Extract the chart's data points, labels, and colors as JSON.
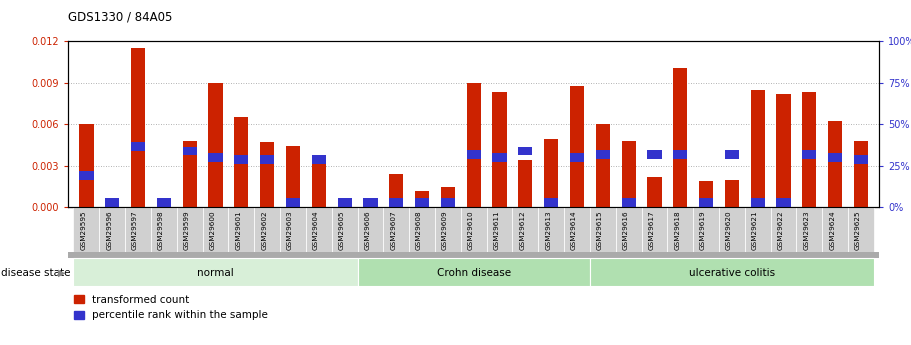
{
  "title": "GDS1330 / 84A05",
  "samples": [
    "GSM29595",
    "GSM29596",
    "GSM29597",
    "GSM29598",
    "GSM29599",
    "GSM29600",
    "GSM29601",
    "GSM29602",
    "GSM29603",
    "GSM29604",
    "GSM29605",
    "GSM29606",
    "GSM29607",
    "GSM29608",
    "GSM29609",
    "GSM29610",
    "GSM29611",
    "GSM29612",
    "GSM29613",
    "GSM29614",
    "GSM29615",
    "GSM29616",
    "GSM29617",
    "GSM29618",
    "GSM29619",
    "GSM29620",
    "GSM29621",
    "GSM29622",
    "GSM29623",
    "GSM29624",
    "GSM29625"
  ],
  "red_values": [
    0.006,
    0.0001,
    0.01155,
    0.0001,
    0.0048,
    0.009,
    0.0065,
    0.0047,
    0.0044,
    0.0035,
    0.0001,
    0.0001,
    0.0024,
    0.00115,
    0.00145,
    0.009,
    0.0083,
    0.0034,
    0.0049,
    0.0088,
    0.006,
    0.0048,
    0.0022,
    0.0101,
    0.0019,
    0.00195,
    0.0085,
    0.0082,
    0.0083,
    0.0062,
    0.0048
  ],
  "blue_percentile": [
    17,
    1,
    35,
    1,
    32,
    28,
    27,
    27,
    1,
    27,
    1,
    1,
    1,
    1,
    1,
    30,
    28,
    32,
    1,
    28,
    30,
    1,
    30,
    30,
    1,
    30,
    1,
    1,
    30,
    28,
    27
  ],
  "groups": [
    {
      "label": "normal",
      "start": 0,
      "end": 11
    },
    {
      "label": "Crohn disease",
      "start": 11,
      "end": 20
    },
    {
      "label": "ulcerative colitis",
      "start": 20,
      "end": 31
    }
  ],
  "group_colors": [
    "#d8efd8",
    "#b0e0b0",
    "#b0e0b0"
  ],
  "group_header_color": "#888888",
  "bar_color_red": "#cc2200",
  "bar_color_blue": "#3333cc",
  "bar_width": 0.55,
  "ylim_left": [
    0,
    0.012
  ],
  "ylim_right": [
    0,
    100
  ],
  "yticks_left": [
    0,
    0.003,
    0.006,
    0.009,
    0.012
  ],
  "yticks_right": [
    0,
    25,
    50,
    75,
    100
  ],
  "legend_red": "transformed count",
  "legend_blue": "percentile rank within the sample",
  "disease_state_label": "disease state",
  "grid_color": "#999999"
}
